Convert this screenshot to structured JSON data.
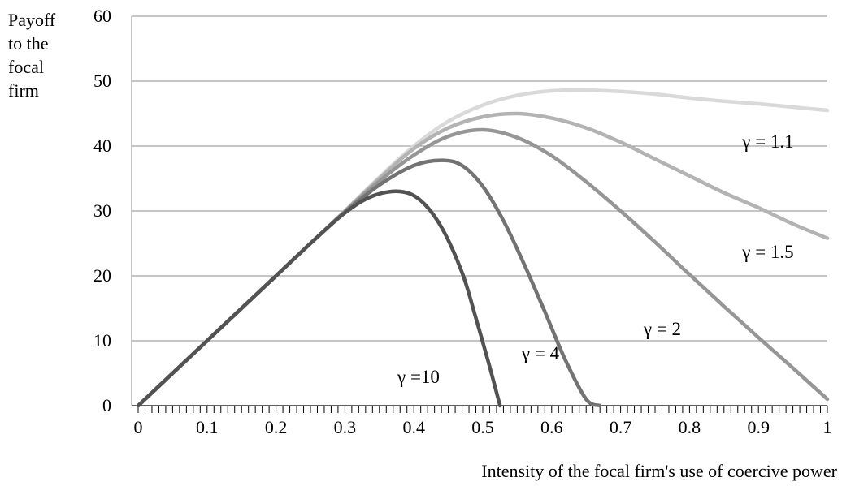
{
  "chart_data": {
    "type": "line",
    "title": "",
    "xlabel": "Intensity of the focal firm's use of coercive power",
    "ylabel_lines": [
      "Payoff",
      "to the",
      "focal",
      "firm"
    ],
    "xlim": [
      0,
      1
    ],
    "ylim": [
      0,
      60
    ],
    "x_ticks": [
      "0",
      "0.1",
      "0.2",
      "0.3",
      "0.4",
      "0.5",
      "0.6",
      "0.7",
      "0.8",
      "0.9",
      "1"
    ],
    "y_ticks": [
      "0",
      "10",
      "20",
      "30",
      "40",
      "50",
      "60"
    ],
    "grid": "horizontal",
    "series": [
      {
        "name": "γ = 1.1",
        "color": "#d9d9d9",
        "x": [
          0,
          0.05,
          0.1,
          0.15,
          0.2,
          0.25,
          0.3,
          0.35,
          0.4,
          0.45,
          0.5,
          0.55,
          0.6,
          0.65,
          0.7,
          0.75,
          0.8,
          0.85,
          0.9,
          0.95,
          1.0
        ],
        "y": [
          0,
          5,
          10,
          15,
          20,
          25,
          30,
          35.2,
          40,
          43.8,
          46.3,
          47.8,
          48.5,
          48.6,
          48.4,
          48.0,
          47.4,
          46.9,
          46.5,
          46.0,
          45.5
        ]
      },
      {
        "name": "γ = 1.5",
        "color": "#b3b3b3",
        "x": [
          0,
          0.05,
          0.1,
          0.15,
          0.2,
          0.25,
          0.3,
          0.35,
          0.4,
          0.45,
          0.5,
          0.55,
          0.6,
          0.65,
          0.7,
          0.75,
          0.8,
          0.85,
          0.9,
          0.95,
          1.0
        ],
        "y": [
          0,
          5,
          10,
          15,
          20,
          25,
          30,
          35.0,
          39.6,
          42.8,
          44.5,
          45.0,
          44.3,
          42.8,
          40.6,
          38.0,
          35.4,
          32.8,
          30.5,
          28.0,
          25.8
        ]
      },
      {
        "name": "γ = 2",
        "color": "#969696",
        "x": [
          0,
          0.05,
          0.1,
          0.15,
          0.2,
          0.25,
          0.3,
          0.35,
          0.4,
          0.45,
          0.5,
          0.55,
          0.6,
          0.65,
          0.7,
          0.75,
          0.8,
          0.85,
          0.9,
          0.95,
          1.0
        ],
        "y": [
          0,
          5,
          10,
          15,
          20,
          25,
          29.9,
          34.6,
          38.6,
          41.5,
          42.5,
          41.3,
          38.5,
          34.5,
          30.0,
          25.2,
          20.2,
          15.3,
          10.5,
          5.8,
          1.0
        ]
      },
      {
        "name": "γ = 4",
        "color": "#737373",
        "x": [
          0,
          0.05,
          0.1,
          0.15,
          0.2,
          0.25,
          0.3,
          0.35,
          0.4,
          0.44,
          0.47,
          0.5,
          0.53,
          0.56,
          0.59,
          0.62,
          0.65,
          0.67
        ],
        "y": [
          0,
          5,
          10,
          15,
          20,
          25,
          29.8,
          34.0,
          37.0,
          37.8,
          37.0,
          33.8,
          28.5,
          21.8,
          14.5,
          7.0,
          1.0,
          0
        ]
      },
      {
        "name": "γ =10",
        "color": "#525252",
        "x": [
          0,
          0.05,
          0.1,
          0.15,
          0.2,
          0.25,
          0.3,
          0.34,
          0.38,
          0.41,
          0.44,
          0.47,
          0.49,
          0.51,
          0.525
        ],
        "y": [
          0,
          5,
          10,
          15,
          20,
          25,
          29.7,
          32.3,
          33.0,
          31.6,
          27.5,
          20.5,
          13.5,
          6.0,
          0
        ]
      }
    ],
    "annotations": [
      "γ = 1.1",
      "γ = 1.5",
      "γ = 2",
      "γ = 4",
      "γ =10"
    ]
  }
}
